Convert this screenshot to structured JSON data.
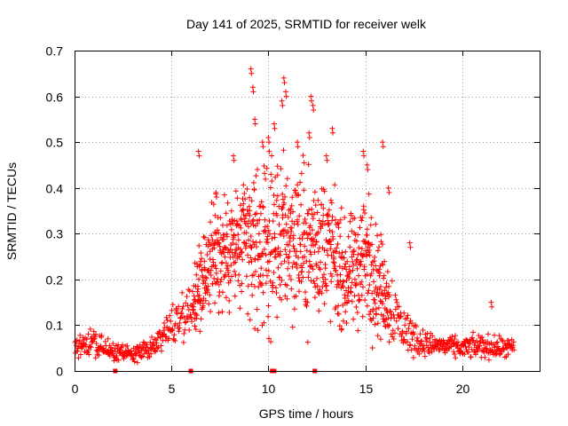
{
  "chart_data": {
    "type": "scatter",
    "title": "Day 141 of 2025, SRMTID for receiver welk",
    "xlabel": "GPS time / hours",
    "ylabel": "SRMTID / TECUs",
    "xlim": [
      0,
      24
    ],
    "ylim": [
      0,
      0.7
    ],
    "x_ticks": [
      0,
      5,
      10,
      15,
      20
    ],
    "x_tick_labels": [
      "0",
      "5",
      "10",
      "15",
      "20"
    ],
    "y_ticks": [
      0,
      0.1,
      0.2,
      0.3,
      0.4,
      0.5,
      0.6,
      0.7
    ],
    "y_tick_labels": [
      "0",
      "0.1",
      "0.2",
      "0.3",
      "0.4",
      "0.5",
      "0.6",
      "0.7"
    ],
    "grid": true,
    "marker": "+",
    "color": "#ff0000",
    "series_name": "welk",
    "envelope": {
      "description": "hourly typical SRMTID level (TECU) and spread of scattered points",
      "hours": [
        0,
        1,
        2,
        3,
        4,
        5,
        6,
        7,
        8,
        9,
        10,
        11,
        12,
        13,
        14,
        15,
        16,
        17,
        18,
        19,
        20,
        21,
        22,
        23
      ],
      "typical": [
        0.05,
        0.06,
        0.04,
        0.035,
        0.05,
        0.1,
        0.14,
        0.24,
        0.26,
        0.28,
        0.27,
        0.3,
        0.27,
        0.28,
        0.2,
        0.25,
        0.17,
        0.09,
        0.06,
        0.055,
        0.05,
        0.055,
        0.05,
        0.05
      ],
      "spread": [
        0.02,
        0.03,
        0.02,
        0.015,
        0.02,
        0.04,
        0.06,
        0.11,
        0.12,
        0.15,
        0.16,
        0.16,
        0.15,
        0.14,
        0.1,
        0.14,
        0.09,
        0.05,
        0.025,
        0.02,
        0.02,
        0.025,
        0.02,
        0.02
      ]
    },
    "peaks": [
      {
        "x": 6.4,
        "y": 0.48
      },
      {
        "x": 7.3,
        "y": 0.39
      },
      {
        "x": 8.2,
        "y": 0.47
      },
      {
        "x": 9.1,
        "y": 0.66
      },
      {
        "x": 9.2,
        "y": 0.62
      },
      {
        "x": 9.3,
        "y": 0.55
      },
      {
        "x": 9.7,
        "y": 0.5
      },
      {
        "x": 10.0,
        "y": 0.51
      },
      {
        "x": 10.3,
        "y": 0.54
      },
      {
        "x": 10.8,
        "y": 0.64
      },
      {
        "x": 10.9,
        "y": 0.61
      },
      {
        "x": 10.7,
        "y": 0.59
      },
      {
        "x": 11.5,
        "y": 0.5
      },
      {
        "x": 12.2,
        "y": 0.6
      },
      {
        "x": 12.3,
        "y": 0.58
      },
      {
        "x": 12.1,
        "y": 0.52
      },
      {
        "x": 13.3,
        "y": 0.53
      },
      {
        "x": 13.0,
        "y": 0.47
      },
      {
        "x": 14.9,
        "y": 0.48
      },
      {
        "x": 15.1,
        "y": 0.45
      },
      {
        "x": 15.9,
        "y": 0.5
      },
      {
        "x": 16.2,
        "y": 0.4
      },
      {
        "x": 17.3,
        "y": 0.28
      },
      {
        "x": 21.5,
        "y": 0.15
      }
    ],
    "zero_points_x": [
      2.1,
      6.0,
      10.2,
      10.3,
      12.4
    ]
  }
}
